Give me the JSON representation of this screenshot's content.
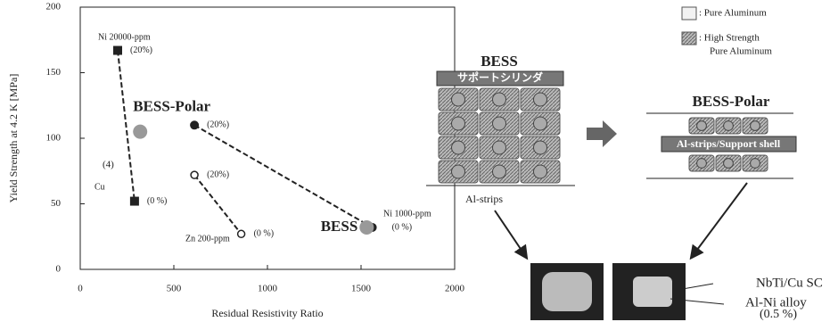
{
  "chart_data": {
    "type": "scatter",
    "x_label": "Residual Resistivity Ratio",
    "y_label": "Yield Strength at 4.2 K  [MPa]",
    "xlim": [
      0,
      2000
    ],
    "xticks": [
      0,
      500,
      1000,
      1500,
      2000
    ],
    "ylim": [
      0,
      200
    ],
    "yticks": [
      0,
      50,
      100,
      150,
      200
    ],
    "annotations": [
      "(4)"
    ],
    "series": [
      {
        "name": "Ni 20000-ppm",
        "marker": "square",
        "color": "#222222",
        "line": true,
        "x": [
          200,
          290
        ],
        "values": [
          167,
          52
        ],
        "point_labels": [
          "(20%)",
          "(0 %)"
        ]
      },
      {
        "name": "Ni 1000-ppm",
        "marker": "circle",
        "color": "#222222",
        "line": true,
        "x": [
          610,
          1560
        ],
        "values": [
          110,
          32
        ],
        "point_labels": [
          "(20%)",
          "(0 %)"
        ]
      },
      {
        "name": "Zn 200-ppm",
        "marker": "open-circle",
        "color": "#222222",
        "line": true,
        "x": [
          610,
          860
        ],
        "values": [
          72,
          27
        ],
        "point_labels": [
          "(20%)",
          "(0 %)"
        ]
      },
      {
        "name": "Cu",
        "marker": "big-circle",
        "color": "#999999",
        "line": false,
        "x": [
          320,
          1530
        ],
        "values": [
          105,
          32
        ],
        "point_labels": [
          "BESS-Polar",
          "BESS"
        ]
      }
    ]
  },
  "diagram": {
    "legend": [
      ": Pure Aluminum",
      ": High Strength",
      "Pure Aluminum"
    ],
    "bess": {
      "title": "BESS",
      "cylinder": "サポートシリンダ",
      "strips": "Al-strips"
    },
    "bess_polar": {
      "title": "BESS-Polar",
      "shell": "Al-strips/Support shell"
    },
    "callouts": [
      "NbTi/Cu SC",
      "Al-Ni alloy",
      "(0.5 %)"
    ]
  }
}
